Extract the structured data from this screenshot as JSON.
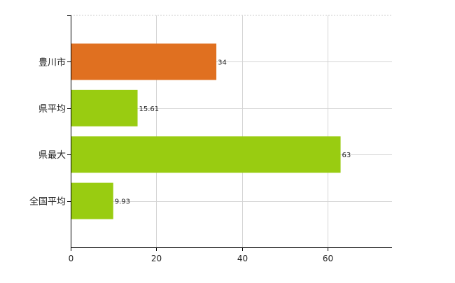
{
  "chart_data": {
    "type": "bar",
    "orientation": "horizontal",
    "categories": [
      "豊川市",
      "県平均",
      "県最大",
      "全国平均"
    ],
    "values": [
      34,
      15.61,
      63,
      9.93
    ],
    "data_labels": [
      "34",
      "15.61",
      "63",
      "9.93"
    ],
    "bar_colors": [
      "#e07020",
      "#99cc11",
      "#99cc11",
      "#99cc11"
    ],
    "xlim": [
      0,
      75
    ],
    "x_ticks": [
      0,
      20,
      40,
      60
    ],
    "x_tick_labels": [
      "0",
      "20",
      "40",
      "60"
    ],
    "title": "",
    "xlabel": "",
    "ylabel": "",
    "grid": true,
    "legend": "none"
  }
}
